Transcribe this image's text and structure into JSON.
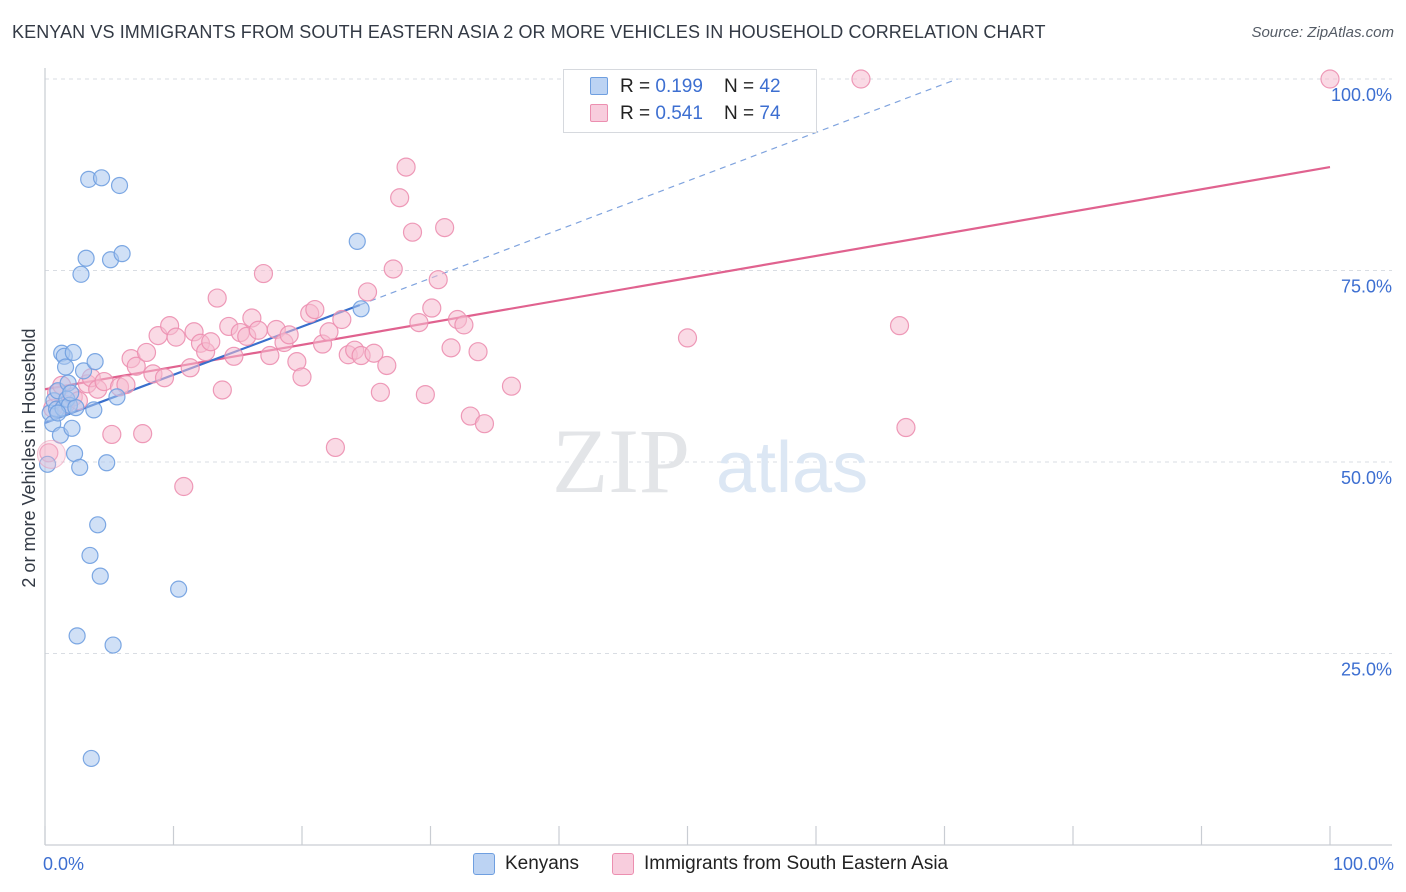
{
  "title": "KENYAN VS IMMIGRANTS FROM SOUTH EASTERN ASIA 2 OR MORE VEHICLES IN HOUSEHOLD CORRELATION CHART",
  "source": "Source: ZipAtlas.com",
  "watermark": {
    "zip": "ZIP",
    "atlas": "atlas"
  },
  "legend": {
    "rows": [
      {
        "r_label": "R = ",
        "r_value": "0.199",
        "n_label": "N = ",
        "n_value": "42"
      },
      {
        "r_label": "R = ",
        "r_value": "0.541",
        "n_label": "N = ",
        "n_value": "74"
      }
    ]
  },
  "bottom_legend": [
    "Kenyans",
    "Immigrants from South Eastern Asia"
  ],
  "colors": {
    "blue_fill": "#a9c6ef",
    "blue_stroke": "#6f9fe0",
    "blue_line": "#3a6fcc",
    "pink_fill": "#f6bcd0",
    "pink_stroke": "#ec8fb0",
    "pink_line": "#e0628f",
    "axis_text": "#3d6fd1",
    "grid": "#d9dde3"
  },
  "chart_data": {
    "type": "scatter",
    "title": "KENYAN VS IMMIGRANTS FROM SOUTH EASTERN ASIA 2 OR MORE VEHICLES IN HOUSEHOLD CORRELATION CHART",
    "xlabel": "",
    "ylabel": "2 or more Vehicles in Household",
    "xlim": [
      0,
      100
    ],
    "ylim": [
      0,
      100
    ],
    "x_tick_labels": [
      {
        "value": 0,
        "label": "0.0%"
      },
      {
        "value": 100,
        "label": "100.0%"
      }
    ],
    "y_tick_labels": [
      {
        "value": 25,
        "label": "25.0%"
      },
      {
        "value": 50,
        "label": "50.0%"
      },
      {
        "value": 75,
        "label": "75.0%"
      },
      {
        "value": 100,
        "label": "100.0%"
      }
    ],
    "series": [
      {
        "name": "Kenyans",
        "color": "blue",
        "R": 0.199,
        "N": 42,
        "trend_solid": [
          [
            0.0,
            55.1
          ],
          [
            24.5,
            70.5
          ]
        ],
        "trend_dashed": [
          [
            24.5,
            70.5
          ],
          [
            71.0,
            100.0
          ]
        ],
        "points": [
          [
            0.2,
            49.7
          ],
          [
            0.4,
            56.4
          ],
          [
            0.6,
            55.0
          ],
          [
            0.7,
            58.0
          ],
          [
            0.9,
            56.9
          ],
          [
            1.0,
            59.3
          ],
          [
            1.2,
            53.5
          ],
          [
            1.3,
            64.2
          ],
          [
            1.4,
            57.0
          ],
          [
            1.5,
            63.8
          ],
          [
            1.6,
            62.4
          ],
          [
            1.7,
            58.2
          ],
          [
            1.8,
            60.3
          ],
          [
            1.9,
            57.4
          ],
          [
            2.1,
            54.4
          ],
          [
            2.2,
            64.3
          ],
          [
            2.3,
            51.1
          ],
          [
            2.4,
            57.1
          ],
          [
            2.5,
            27.3
          ],
          [
            2.7,
            49.3
          ],
          [
            2.8,
            74.5
          ],
          [
            3.0,
            61.9
          ],
          [
            3.2,
            76.6
          ],
          [
            3.4,
            86.9
          ],
          [
            3.5,
            37.8
          ],
          [
            3.6,
            11.3
          ],
          [
            3.8,
            56.8
          ],
          [
            3.9,
            63.1
          ],
          [
            4.1,
            41.8
          ],
          [
            4.3,
            35.1
          ],
          [
            4.4,
            87.1
          ],
          [
            4.8,
            49.9
          ],
          [
            5.1,
            76.4
          ],
          [
            5.3,
            26.1
          ],
          [
            5.6,
            58.5
          ],
          [
            5.8,
            86.1
          ],
          [
            6.0,
            77.2
          ],
          [
            10.4,
            33.4
          ],
          [
            24.3,
            78.8
          ],
          [
            24.6,
            70.0
          ],
          [
            1.0,
            56.4
          ],
          [
            2.0,
            59.0
          ]
        ]
      },
      {
        "name": "Immigrants from South Eastern Asia",
        "color": "pink",
        "R": 0.541,
        "N": 74,
        "trend_solid": [
          [
            0.0,
            59.5
          ],
          [
            100.0,
            88.5
          ]
        ],
        "points": [
          [
            0.3,
            51.2
          ],
          [
            0.6,
            57.0
          ],
          [
            0.9,
            59.0
          ],
          [
            1.3,
            60.0
          ],
          [
            1.6,
            57.5
          ],
          [
            2.2,
            58.5
          ],
          [
            2.6,
            58.0
          ],
          [
            3.3,
            60.2
          ],
          [
            3.6,
            61.0
          ],
          [
            4.1,
            59.5
          ],
          [
            4.6,
            60.5
          ],
          [
            5.2,
            53.6
          ],
          [
            5.8,
            59.8
          ],
          [
            6.3,
            60.1
          ],
          [
            6.7,
            63.5
          ],
          [
            7.1,
            62.5
          ],
          [
            7.6,
            53.7
          ],
          [
            7.9,
            64.3
          ],
          [
            8.4,
            61.5
          ],
          [
            8.8,
            66.5
          ],
          [
            9.3,
            61.0
          ],
          [
            9.7,
            67.8
          ],
          [
            10.2,
            66.3
          ],
          [
            10.8,
            46.8
          ],
          [
            11.3,
            62.3
          ],
          [
            11.6,
            67.0
          ],
          [
            12.1,
            65.5
          ],
          [
            12.5,
            64.4
          ],
          [
            12.9,
            65.7
          ],
          [
            13.4,
            71.4
          ],
          [
            13.8,
            59.4
          ],
          [
            14.3,
            67.7
          ],
          [
            14.7,
            63.8
          ],
          [
            15.2,
            66.9
          ],
          [
            15.7,
            66.4
          ],
          [
            16.1,
            68.8
          ],
          [
            16.6,
            67.2
          ],
          [
            17.0,
            74.6
          ],
          [
            17.5,
            63.9
          ],
          [
            18.0,
            67.3
          ],
          [
            18.6,
            65.6
          ],
          [
            19.0,
            66.6
          ],
          [
            19.6,
            63.1
          ],
          [
            20.0,
            61.1
          ],
          [
            20.6,
            69.4
          ],
          [
            21.0,
            69.9
          ],
          [
            21.6,
            65.4
          ],
          [
            22.1,
            67.0
          ],
          [
            22.6,
            51.9
          ],
          [
            23.1,
            68.6
          ],
          [
            23.6,
            64.0
          ],
          [
            24.1,
            64.6
          ],
          [
            24.6,
            63.9
          ],
          [
            25.1,
            72.2
          ],
          [
            25.6,
            64.2
          ],
          [
            26.1,
            59.1
          ],
          [
            26.6,
            62.6
          ],
          [
            27.1,
            75.2
          ],
          [
            27.6,
            84.5
          ],
          [
            28.1,
            88.5
          ],
          [
            28.6,
            80.0
          ],
          [
            29.1,
            68.2
          ],
          [
            29.6,
            58.8
          ],
          [
            30.1,
            70.1
          ],
          [
            30.6,
            73.8
          ],
          [
            31.1,
            80.6
          ],
          [
            31.6,
            64.9
          ],
          [
            32.1,
            68.6
          ],
          [
            32.6,
            67.9
          ],
          [
            33.1,
            56.0
          ],
          [
            33.7,
            64.4
          ],
          [
            34.2,
            55.0
          ],
          [
            36.3,
            59.9
          ],
          [
            50.0,
            66.2
          ]
        ],
        "extra_points": [
          [
            63.5,
            100.0
          ],
          [
            66.5,
            67.8
          ],
          [
            67.0,
            54.5
          ],
          [
            100.0,
            100.0
          ]
        ]
      }
    ]
  }
}
